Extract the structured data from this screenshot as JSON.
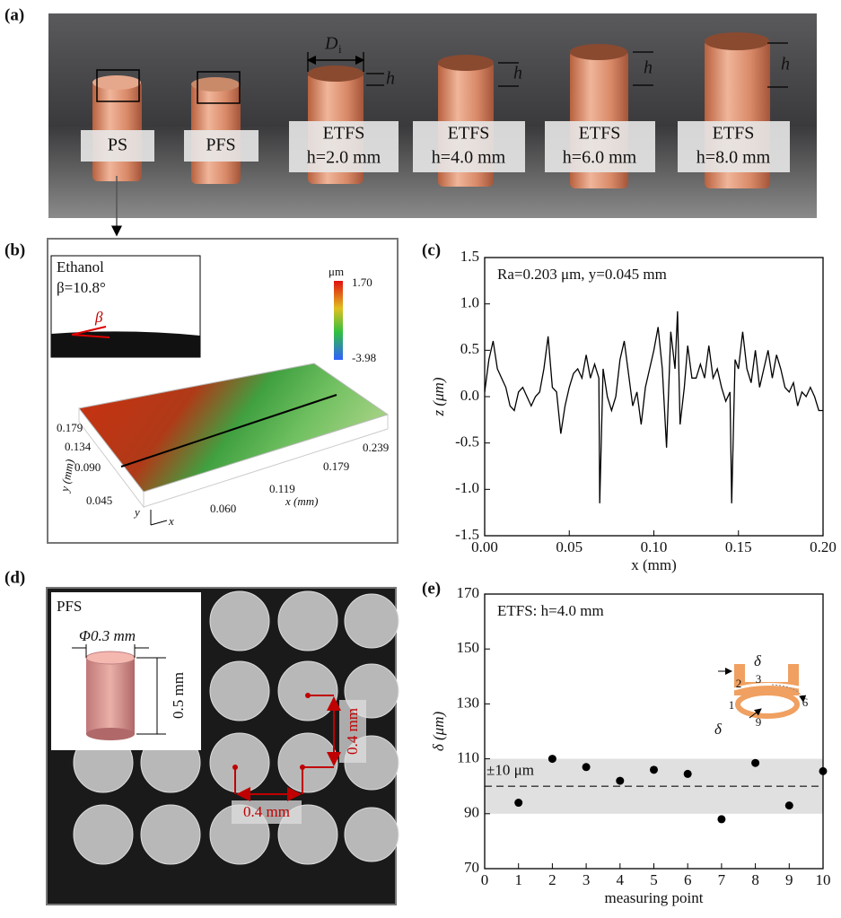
{
  "figure": {
    "a": {
      "label": "(a)",
      "samples": [
        "PS",
        "PFS",
        "ETFS",
        "ETFS",
        "ETFS",
        "ETFS"
      ],
      "heights": [
        "h=2.0 mm",
        "h=4.0 mm",
        "h=6.0 mm",
        "h=8.0 mm"
      ],
      "diameter": "D",
      "diameter_sub": "i",
      "height_symbol": "h"
    },
    "b": {
      "label": "(b)",
      "liquid": "Ethanol",
      "angle": "β=10.8°",
      "angle_symbol": "β",
      "unit": "μm",
      "color_max": "1.70",
      "color_min": "-3.98",
      "y_ticks": [
        "0.179",
        "0.134",
        "0.090",
        "0.045"
      ],
      "x_ticks": [
        "0.060",
        "0.119",
        "0.179",
        "0.239"
      ],
      "x_label": "x (mm)",
      "y_label": "y (mm)",
      "axis_x": "x",
      "axis_y": "y"
    },
    "d": {
      "label": "(d)",
      "sample": "PFS",
      "diameter": "Φ0.3 mm",
      "height": "0.5 mm",
      "pitch": "0.4 mm"
    }
  },
  "chart_data": [
    {
      "type": "line",
      "label": "(c)",
      "annotation": "Ra=0.203 μm, y=0.045 mm",
      "x_label": "x (mm)",
      "y_label": "z (μm)",
      "color": "#000000",
      "x": [
        0,
        0.0025,
        0.005,
        0.0075,
        0.01,
        0.0125,
        0.015,
        0.0175,
        0.02,
        0.0225,
        0.025,
        0.0275,
        0.03,
        0.0325,
        0.035,
        0.0375,
        0.04,
        0.0425,
        0.045,
        0.0475,
        0.05,
        0.0525,
        0.055,
        0.0575,
        0.06,
        0.0625,
        0.065,
        0.0675,
        0.068,
        0.07,
        0.0725,
        0.075,
        0.0775,
        0.08,
        0.0825,
        0.085,
        0.0875,
        0.09,
        0.0925,
        0.095,
        0.0975,
        0.1,
        0.1025,
        0.105,
        0.1075,
        0.11,
        0.1125,
        0.114,
        0.1155,
        0.118,
        0.12,
        0.1225,
        0.125,
        0.1275,
        0.13,
        0.1325,
        0.135,
        0.1375,
        0.14,
        0.1425,
        0.145,
        0.146,
        0.148,
        0.15,
        0.1525,
        0.155,
        0.1575,
        0.16,
        0.1625,
        0.165,
        0.1675,
        0.17,
        0.1725,
        0.175,
        0.1775,
        0.18,
        0.1825,
        0.185,
        0.1875,
        0.19,
        0.1925,
        0.195,
        0.1975,
        0.2
      ],
      "values": [
        0.05,
        0.4,
        0.6,
        0.3,
        0.2,
        0.1,
        -0.1,
        -0.15,
        0.05,
        0.1,
        0.0,
        -0.1,
        0.0,
        0.05,
        0.3,
        0.65,
        0.1,
        0.05,
        -0.4,
        -0.1,
        0.1,
        0.25,
        0.3,
        0.2,
        0.45,
        0.2,
        0.35,
        0.2,
        -1.15,
        0.3,
        0.0,
        -0.15,
        0.0,
        0.4,
        0.6,
        0.25,
        -0.1,
        0.05,
        -0.3,
        0.1,
        0.3,
        0.5,
        0.75,
        0.3,
        -0.55,
        0.7,
        0.3,
        0.92,
        -0.3,
        0.1,
        0.55,
        0.2,
        0.2,
        0.35,
        0.2,
        0.55,
        0.2,
        0.3,
        0.1,
        -0.05,
        0.05,
        -1.15,
        0.4,
        0.3,
        0.7,
        0.3,
        0.15,
        0.5,
        0.1,
        0.3,
        0.5,
        0.2,
        0.45,
        0.3,
        0.1,
        0.05,
        0.15,
        -0.1,
        0.05,
        0.0,
        0.1,
        0.0,
        -0.15,
        -0.15
      ],
      "xlim": [
        0,
        0.2
      ],
      "ylim": [
        -1.5,
        1.5
      ],
      "xticks": [
        {
          "value": 0,
          "label": "0.00"
        },
        0.05,
        {
          "value": 0.1,
          "label": "0.10"
        },
        0.15,
        {
          "value": 0.2,
          "label": "0.20"
        }
      ],
      "yticks": [
        -1.5,
        {
          "value": -1,
          "label": "-1.0"
        },
        -0.5,
        {
          "value": 0,
          "label": "0.0"
        },
        0.5,
        {
          "value": 1,
          "label": "1.0"
        },
        1.5
      ]
    },
    {
      "type": "scatter",
      "label": "(e)",
      "annotation": "ETFS: h=4.0 mm",
      "band_label": "±10 μm",
      "x_label": "measuring point",
      "y_label": "δ (μm)",
      "color": "#000000",
      "x": [
        1,
        2,
        3,
        4,
        5,
        6,
        7,
        8,
        9,
        10
      ],
      "values": [
        94,
        110,
        107,
        102,
        106,
        104.5,
        88,
        108.5,
        93,
        105.5
      ],
      "band": [
        90,
        110
      ],
      "reference": 100,
      "band_color": "#e0e0e0",
      "inset_points": [
        "1",
        "2",
        "3",
        "6",
        "9"
      ],
      "inset_symbol": "δ",
      "xlim": [
        0,
        10
      ],
      "ylim": [
        70,
        170
      ],
      "xticks": [
        0,
        1,
        2,
        3,
        4,
        5,
        6,
        7,
        8,
        9,
        10
      ],
      "yticks": [
        70,
        90,
        110,
        130,
        150,
        170
      ]
    }
  ]
}
